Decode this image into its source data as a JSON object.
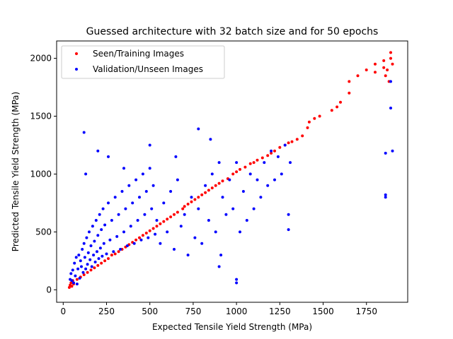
{
  "chart_data": {
    "type": "scatter",
    "title": "Guessed architecture with 32 batch size and for 50 epochs",
    "xlabel": "Expected Tensile Yield Strength (MPa)",
    "ylabel": "Predicted Tensile Yield Strength (MPa)",
    "xlim": [
      -38,
      1988
    ],
    "ylim": [
      -108,
      2150
    ],
    "xticks": [
      0,
      250,
      500,
      750,
      1000,
      1250,
      1500,
      1750
    ],
    "yticks": [
      0,
      500,
      1000,
      1500,
      2000
    ],
    "grid": false,
    "legend_position": "top-left",
    "colors": {
      "train": "#ff0000",
      "val": "#0000ff"
    },
    "series": [
      {
        "name": "Seen/Training Images",
        "color": "#ff0000",
        "points": [
          [
            35,
            20
          ],
          [
            40,
            40
          ],
          [
            45,
            60
          ],
          [
            50,
            30
          ],
          [
            55,
            80
          ],
          [
            60,
            50
          ],
          [
            80,
            90
          ],
          [
            100,
            110
          ],
          [
            120,
            130
          ],
          [
            140,
            150
          ],
          [
            160,
            170
          ],
          [
            180,
            190
          ],
          [
            200,
            210
          ],
          [
            220,
            230
          ],
          [
            240,
            250
          ],
          [
            260,
            270
          ],
          [
            280,
            300
          ],
          [
            300,
            310
          ],
          [
            320,
            330
          ],
          [
            340,
            350
          ],
          [
            360,
            370
          ],
          [
            380,
            390
          ],
          [
            400,
            410
          ],
          [
            420,
            430
          ],
          [
            440,
            450
          ],
          [
            460,
            470
          ],
          [
            480,
            490
          ],
          [
            500,
            510
          ],
          [
            520,
            530
          ],
          [
            540,
            550
          ],
          [
            560,
            570
          ],
          [
            580,
            590
          ],
          [
            600,
            610
          ],
          [
            620,
            630
          ],
          [
            640,
            650
          ],
          [
            660,
            670
          ],
          [
            690,
            700
          ],
          [
            700,
            720
          ],
          [
            720,
            740
          ],
          [
            740,
            760
          ],
          [
            760,
            780
          ],
          [
            780,
            800
          ],
          [
            800,
            820
          ],
          [
            820,
            840
          ],
          [
            840,
            860
          ],
          [
            860,
            880
          ],
          [
            880,
            900
          ],
          [
            900,
            920
          ],
          [
            920,
            940
          ],
          [
            950,
            960
          ],
          [
            980,
            1000
          ],
          [
            1000,
            1020
          ],
          [
            1020,
            1040
          ],
          [
            1050,
            1060
          ],
          [
            1080,
            1090
          ],
          [
            1100,
            1100
          ],
          [
            1120,
            1120
          ],
          [
            1150,
            1140
          ],
          [
            1180,
            1160
          ],
          [
            1200,
            1180
          ],
          [
            1220,
            1200
          ],
          [
            1250,
            1230
          ],
          [
            1280,
            1250
          ],
          [
            1300,
            1270
          ],
          [
            1320,
            1280
          ],
          [
            1350,
            1300
          ],
          [
            1380,
            1330
          ],
          [
            1410,
            1400
          ],
          [
            1420,
            1450
          ],
          [
            1450,
            1480
          ],
          [
            1480,
            1500
          ],
          [
            1550,
            1550
          ],
          [
            1580,
            1580
          ],
          [
            1600,
            1620
          ],
          [
            1650,
            1700
          ],
          [
            1650,
            1800
          ],
          [
            1700,
            1850
          ],
          [
            1750,
            1900
          ],
          [
            1800,
            1880
          ],
          [
            1800,
            1950
          ],
          [
            1850,
            1920
          ],
          [
            1850,
            1980
          ],
          [
            1890,
            2000
          ],
          [
            1890,
            2050
          ],
          [
            1900,
            1950
          ],
          [
            1860,
            1850
          ],
          [
            1870,
            1900
          ],
          [
            1880,
            1800
          ]
        ]
      },
      {
        "name": "Validation/Unseen Images",
        "color": "#0000ff",
        "points": [
          [
            40,
            90
          ],
          [
            45,
            140
          ],
          [
            50,
            80
          ],
          [
            55,
            170
          ],
          [
            60,
            60
          ],
          [
            65,
            230
          ],
          [
            70,
            120
          ],
          [
            75,
            280
          ],
          [
            80,
            50
          ],
          [
            85,
            180
          ],
          [
            90,
            300
          ],
          [
            95,
            100
          ],
          [
            100,
            250
          ],
          [
            105,
            200
          ],
          [
            110,
            350
          ],
          [
            115,
            150
          ],
          [
            120,
            400
          ],
          [
            125,
            280
          ],
          [
            130,
            180
          ],
          [
            135,
            450
          ],
          [
            140,
            220
          ],
          [
            145,
            320
          ],
          [
            150,
            500
          ],
          [
            155,
            260
          ],
          [
            160,
            380
          ],
          [
            165,
            200
          ],
          [
            170,
            550
          ],
          [
            175,
            300
          ],
          [
            180,
            420
          ],
          [
            185,
            240
          ],
          [
            190,
            600
          ],
          [
            195,
            330
          ],
          [
            200,
            470
          ],
          [
            205,
            270
          ],
          [
            210,
            650
          ],
          [
            215,
            360
          ],
          [
            220,
            520
          ],
          [
            225,
            290
          ],
          [
            230,
            700
          ],
          [
            235,
            400
          ],
          [
            240,
            560
          ],
          [
            250,
            310
          ],
          [
            260,
            750
          ],
          [
            270,
            430
          ],
          [
            280,
            600
          ],
          [
            290,
            330
          ],
          [
            300,
            800
          ],
          [
            310,
            460
          ],
          [
            320,
            650
          ],
          [
            330,
            350
          ],
          [
            340,
            850
          ],
          [
            350,
            500
          ],
          [
            360,
            700
          ],
          [
            370,
            380
          ],
          [
            380,
            900
          ],
          [
            390,
            550
          ],
          [
            400,
            750
          ],
          [
            410,
            400
          ],
          [
            420,
            950
          ],
          [
            430,
            600
          ],
          [
            440,
            800
          ],
          [
            450,
            430
          ],
          [
            460,
            1000
          ],
          [
            470,
            650
          ],
          [
            480,
            850
          ],
          [
            490,
            450
          ],
          [
            500,
            1050
          ],
          [
            510,
            700
          ],
          [
            520,
            900
          ],
          [
            530,
            480
          ],
          [
            540,
            600
          ],
          [
            560,
            400
          ],
          [
            580,
            750
          ],
          [
            600,
            500
          ],
          [
            620,
            850
          ],
          [
            640,
            350
          ],
          [
            660,
            950
          ],
          [
            680,
            550
          ],
          [
            700,
            650
          ],
          [
            720,
            300
          ],
          [
            740,
            800
          ],
          [
            760,
            450
          ],
          [
            780,
            700
          ],
          [
            800,
            400
          ],
          [
            820,
            900
          ],
          [
            840,
            600
          ],
          [
            860,
            1000
          ],
          [
            880,
            500
          ],
          [
            900,
            1100
          ],
          [
            910,
            300
          ],
          [
            920,
            800
          ],
          [
            940,
            650
          ],
          [
            960,
            950
          ],
          [
            980,
            700
          ],
          [
            1000,
            1100
          ],
          [
            1000,
            60
          ],
          [
            1000,
            90
          ],
          [
            1020,
            500
          ],
          [
            1040,
            850
          ],
          [
            1060,
            600
          ],
          [
            1080,
            1000
          ],
          [
            1100,
            700
          ],
          [
            1120,
            950
          ],
          [
            1140,
            800
          ],
          [
            1160,
            1100
          ],
          [
            1180,
            900
          ],
          [
            1200,
            1200
          ],
          [
            1220,
            950
          ],
          [
            1240,
            1150
          ],
          [
            1260,
            1000
          ],
          [
            1280,
            1250
          ],
          [
            1300,
            520
          ],
          [
            1300,
            650
          ],
          [
            1310,
            1100
          ],
          [
            1860,
            1180
          ],
          [
            1860,
            820
          ],
          [
            1860,
            800
          ],
          [
            1890,
            1570
          ],
          [
            1890,
            1800
          ],
          [
            1900,
            1200
          ],
          [
            120,
            1360
          ],
          [
            130,
            1000
          ],
          [
            200,
            1200
          ],
          [
            260,
            1150
          ],
          [
            350,
            1050
          ],
          [
            500,
            1250
          ],
          [
            650,
            1150
          ],
          [
            780,
            1390
          ],
          [
            850,
            1300
          ],
          [
            900,
            200
          ]
        ]
      }
    ]
  }
}
